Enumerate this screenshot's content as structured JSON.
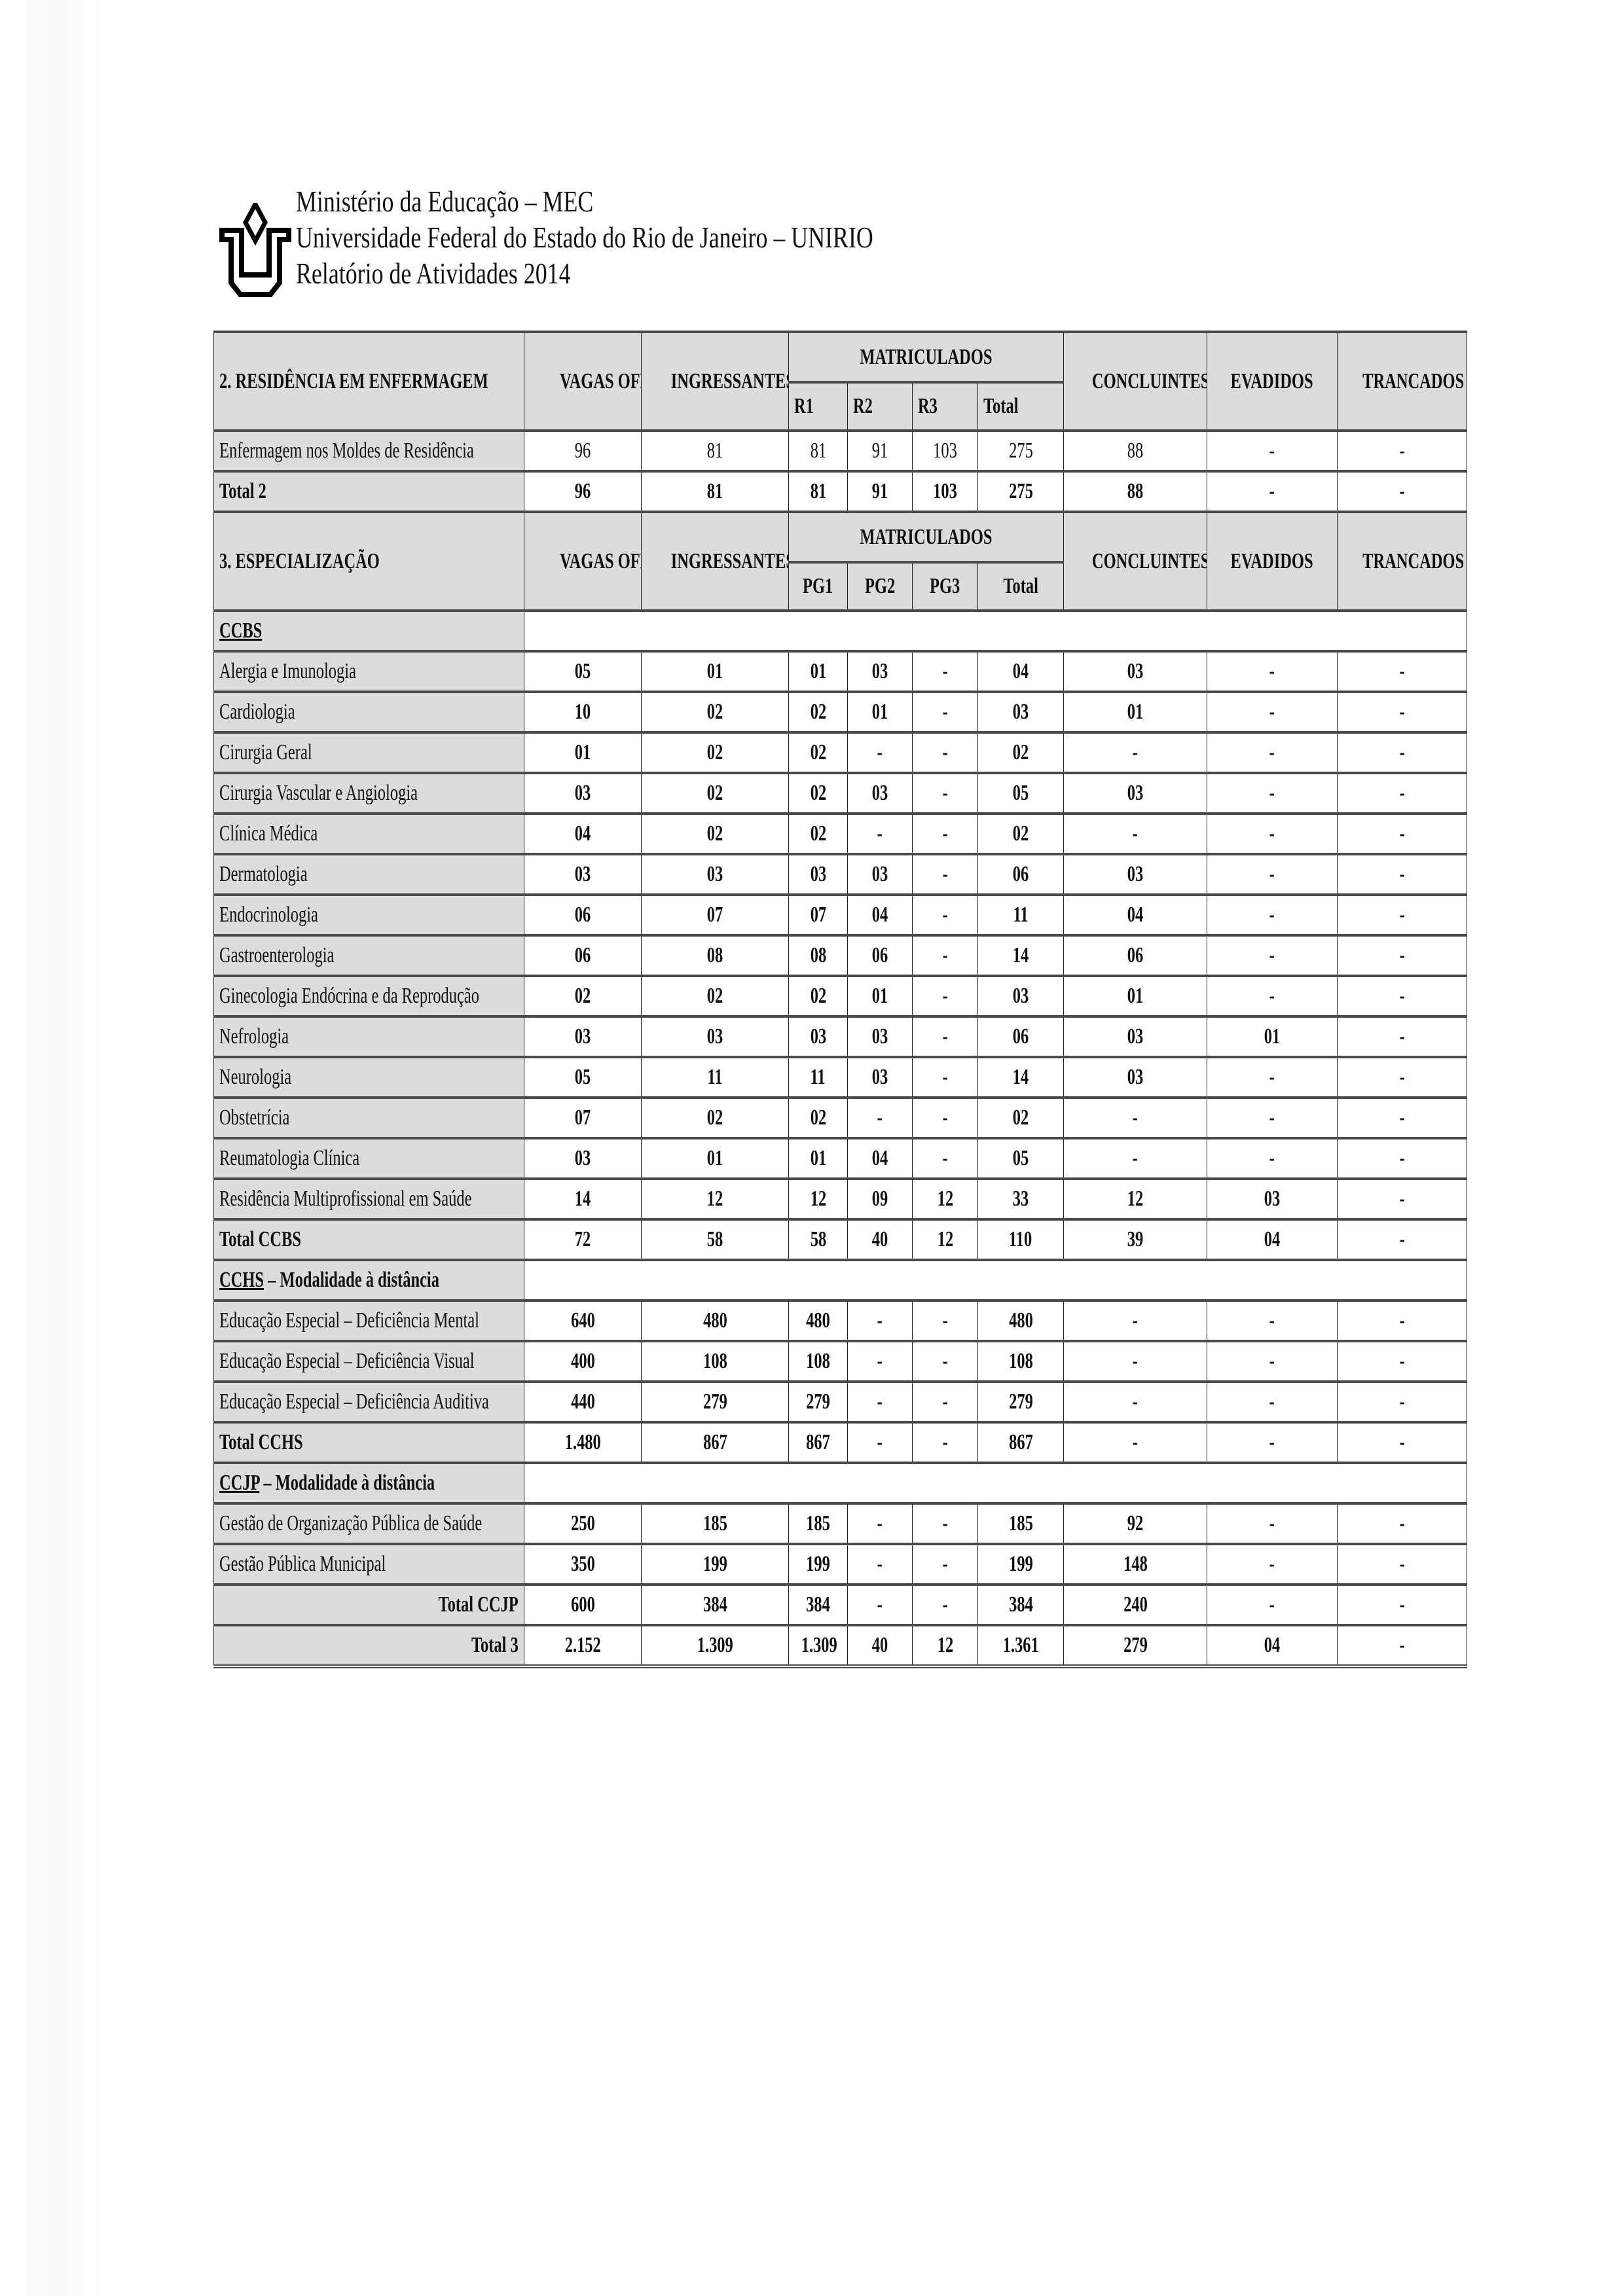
{
  "header": {
    "lines": [
      "Ministério da Educação – MEC",
      "Universidade Federal do Estado do Rio de Janeiro – UNIRIO",
      "Relatório de Atividades 2014"
    ],
    "logo_icon": "unirio-logo"
  },
  "colors": {
    "header_fill": "#dcdcdc",
    "rule": "#4a4a4a"
  },
  "section2": {
    "title": "2. RESIDÊNCIA EM ENFERMAGEM",
    "columns": {
      "vagas": "VAGAS OFERTADAS",
      "ingressantes": "INGRESSANTES",
      "matriculados": "MATRICULADOS",
      "sub": [
        "R1",
        "R2",
        "R3",
        "Total"
      ],
      "concluintes": "CONCLUINTES",
      "evadidos": "EVADIDOS",
      "trancados": "TRANCADOS"
    },
    "rows": [
      {
        "type": "data-plain",
        "label": "Enfermagem nos Moldes de Residência",
        "values": [
          "96",
          "81",
          "81",
          "91",
          "103",
          "275",
          "88",
          "-",
          "-"
        ]
      },
      {
        "type": "total",
        "label": "Total 2",
        "values": [
          "96",
          "81",
          "81",
          "91",
          "103",
          "275",
          "88",
          "-",
          "-"
        ]
      }
    ]
  },
  "section3": {
    "title": "3. ESPECIALIZAÇÃO",
    "columns": {
      "vagas": "VAGAS OFERTADAS",
      "ingressantes": "INGRESSANTES",
      "matriculados": "MATRICULADOS",
      "sub": [
        "PG1",
        "PG2",
        "PG3",
        "Total"
      ],
      "concluintes": "CONCLUINTES",
      "evadidos": "EVADIDOS",
      "trancados": "TRANCADOS"
    },
    "rows": [
      {
        "type": "group",
        "code": "CCBS",
        "suffix": ""
      },
      {
        "type": "data",
        "label": "Alergia e Imunologia",
        "values": [
          "05",
          "01",
          "01",
          "03",
          "-",
          "04",
          "03",
          "-",
          "-"
        ]
      },
      {
        "type": "data",
        "label": "Cardiologia",
        "values": [
          "10",
          "02",
          "02",
          "01",
          "-",
          "03",
          "01",
          "-",
          "-"
        ]
      },
      {
        "type": "data",
        "label": "Cirurgia Geral",
        "values": [
          "01",
          "02",
          "02",
          "-",
          "-",
          "02",
          "-",
          "-",
          "-"
        ]
      },
      {
        "type": "data",
        "label": "Cirurgia Vascular e Angiologia",
        "values": [
          "03",
          "02",
          "02",
          "03",
          "-",
          "05",
          "03",
          "-",
          "-"
        ]
      },
      {
        "type": "data",
        "label": "Clínica Médica",
        "values": [
          "04",
          "02",
          "02",
          "-",
          "-",
          "02",
          "-",
          "-",
          "-"
        ]
      },
      {
        "type": "data",
        "label": "Dermatologia",
        "values": [
          "03",
          "03",
          "03",
          "03",
          "-",
          "06",
          "03",
          "-",
          "-"
        ]
      },
      {
        "type": "data",
        "label": "Endocrinologia",
        "values": [
          "06",
          "07",
          "07",
          "04",
          "-",
          "11",
          "04",
          "-",
          "-"
        ]
      },
      {
        "type": "data",
        "label": "Gastroenterologia",
        "values": [
          "06",
          "08",
          "08",
          "06",
          "-",
          "14",
          "06",
          "-",
          "-"
        ]
      },
      {
        "type": "data",
        "label": "Ginecologia Endócrina e da Reprodução",
        "values": [
          "02",
          "02",
          "02",
          "01",
          "-",
          "03",
          "01",
          "-",
          "-"
        ]
      },
      {
        "type": "data",
        "label": "Nefrologia",
        "values": [
          "03",
          "03",
          "03",
          "03",
          "-",
          "06",
          "03",
          "01",
          "-"
        ]
      },
      {
        "type": "data",
        "label": "Neurologia",
        "values": [
          "05",
          "11",
          "11",
          "03",
          "-",
          "14",
          "03",
          "-",
          "-"
        ]
      },
      {
        "type": "data",
        "label": "Obstetrícia",
        "values": [
          "07",
          "02",
          "02",
          "-",
          "-",
          "02",
          "-",
          "-",
          "-"
        ]
      },
      {
        "type": "data",
        "label": "Reumatologia Clínica",
        "values": [
          "03",
          "01",
          "01",
          "04",
          "-",
          "05",
          "-",
          "-",
          "-"
        ]
      },
      {
        "type": "data",
        "label": "Residência Multiprofissional em Saúde",
        "values": [
          "14",
          "12",
          "12",
          "09",
          "12",
          "33",
          "12",
          "03",
          "-"
        ]
      },
      {
        "type": "total",
        "label": "Total CCBS",
        "values": [
          "72",
          "58",
          "58",
          "40",
          "12",
          "110",
          "39",
          "04",
          "-"
        ]
      },
      {
        "type": "group",
        "code": "CCHS",
        "suffix": " – Modalidade à distância"
      },
      {
        "type": "data",
        "label": "Educação Especial – Deficiência Mental",
        "values": [
          "640",
          "480",
          "480",
          "-",
          "-",
          "480",
          "-",
          "-",
          "-"
        ]
      },
      {
        "type": "data",
        "label": "Educação Especial – Deficiência Visual",
        "values": [
          "400",
          "108",
          "108",
          "-",
          "-",
          "108",
          "-",
          "-",
          "-"
        ]
      },
      {
        "type": "data",
        "label": "Educação Especial – Deficiência Auditiva",
        "values": [
          "440",
          "279",
          "279",
          "-",
          "-",
          "279",
          "-",
          "-",
          "-"
        ]
      },
      {
        "type": "total",
        "label": "Total CCHS",
        "values": [
          "1.480",
          "867",
          "867",
          "-",
          "-",
          "867",
          "-",
          "-",
          "-"
        ]
      },
      {
        "type": "group",
        "code": "CCJP",
        "suffix": " – Modalidade à distância"
      },
      {
        "type": "data",
        "label": "Gestão de Organização Pública de Saúde",
        "values": [
          "250",
          "185",
          "185",
          "-",
          "-",
          "185",
          "92",
          "-",
          "-"
        ]
      },
      {
        "type": "data",
        "label": "Gestão Pública Municipal",
        "values": [
          "350",
          "199",
          "199",
          "-",
          "-",
          "199",
          "148",
          "-",
          "-"
        ]
      },
      {
        "type": "total-right",
        "label": "Total CCJP",
        "values": [
          "600",
          "384",
          "384",
          "-",
          "-",
          "384",
          "240",
          "-",
          "-"
        ]
      },
      {
        "type": "total-right",
        "label": "Total 3",
        "values": [
          "2.152",
          "1.309",
          "1.309",
          "40",
          "12",
          "1.361",
          "279",
          "04",
          "-"
        ],
        "last": true
      }
    ]
  }
}
